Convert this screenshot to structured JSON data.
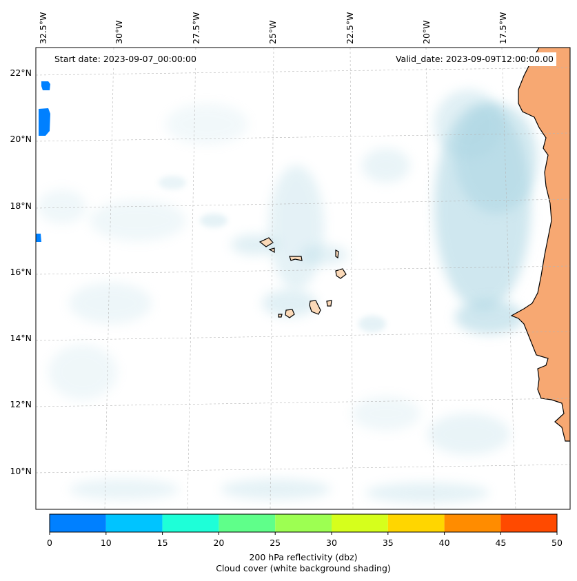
{
  "map": {
    "start_label": "Start date: 2023-09-07_00:00:00",
    "valid_label": "Valid_date: 2023-09-09T12:00:00.00",
    "lon_labels": [
      "32.5°W",
      "30°W",
      "27.5°W",
      "25°W",
      "22.5°W",
      "20°W",
      "17.5°W"
    ],
    "lat_labels": [
      "22°N",
      "20°N",
      "18°N",
      "16°N",
      "14°N",
      "12°N",
      "10°N"
    ],
    "ocean_color": "#ffffff",
    "cloud_color": "#a9d4e2",
    "land_color": "#f7a872",
    "island_fill": "#fbd9b8",
    "reflectivity_patch_color": "#0080ff"
  },
  "colorbar": {
    "title_line1": "200 hPa reflectivity (dbz)",
    "title_line2": "Cloud cover (white background shading)",
    "ticks": [
      "0",
      "10",
      "15",
      "20",
      "25",
      "30",
      "35",
      "40",
      "45",
      "50"
    ],
    "colors": [
      "#0080ff",
      "#00c4ff",
      "#1effd8",
      "#5fff8a",
      "#9dff52",
      "#d6ff1c",
      "#ffd600",
      "#ff8c00",
      "#ff4a00"
    ]
  }
}
